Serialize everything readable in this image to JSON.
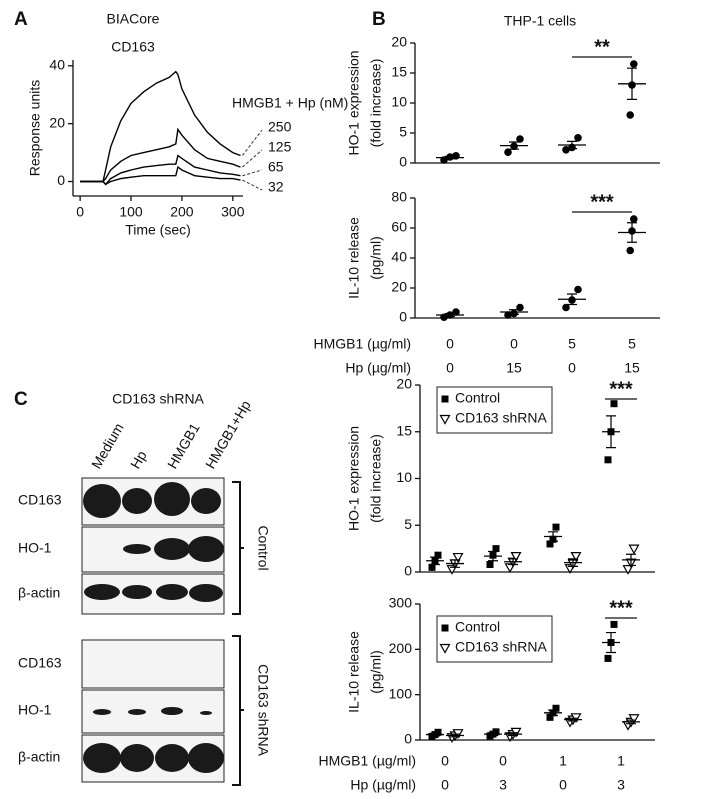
{
  "panel_labels": [
    "A",
    "B",
    "C"
  ],
  "blot": {
    "title": "CD163 shRNA",
    "lanes": [
      "Medium",
      "Hp",
      "HMGB1",
      "HMGB1+Hp"
    ],
    "groups": [
      {
        "label": "Control",
        "rows": [
          "CD163",
          "HO-1",
          "β-actin"
        ]
      },
      {
        "label": "CD163 shRNA",
        "rows": [
          "CD163",
          "HO-1",
          "β-actin"
        ]
      }
    ]
  },
  "chart_data": [
    {
      "type": "line",
      "title": "BIACore",
      "subtitle": "CD163",
      "x_label": "Time (sec)",
      "y_label": "Response units",
      "legend_title": "HMGB1 + Hp (nM)",
      "x": [
        0,
        25,
        45,
        50,
        60,
        80,
        100,
        125,
        150,
        175,
        188,
        192,
        200,
        225,
        250,
        275,
        300,
        315
      ],
      "xlim": [
        -14,
        320
      ],
      "xticks": [
        0,
        100,
        200,
        300
      ],
      "ylim": [
        -5,
        42
      ],
      "yticks": [
        0,
        20,
        40
      ],
      "series": [
        {
          "name": "250",
          "color": "#000000",
          "values": [
            0,
            0,
            0,
            4,
            12,
            21,
            27,
            31,
            34,
            36,
            38,
            37,
            32,
            23,
            17,
            13,
            10,
            9
          ]
        },
        {
          "name": "125",
          "color": "#000000",
          "values": [
            0,
            0,
            0,
            1,
            4,
            7,
            9,
            10,
            11,
            12,
            13,
            18,
            16,
            11,
            8,
            7,
            6,
            5
          ]
        },
        {
          "name": "65",
          "color": "#000000",
          "values": [
            0,
            0,
            0,
            -1,
            1,
            3,
            4,
            5,
            5.5,
            6,
            6,
            9,
            8,
            5,
            4,
            3,
            2.5,
            2
          ]
        },
        {
          "name": "32",
          "color": "#000000",
          "values": [
            0,
            0,
            0,
            -1,
            0,
            1,
            1.5,
            2,
            2,
            2,
            2,
            5,
            4,
            2,
            1.5,
            1,
            1,
            0.5
          ]
        }
      ]
    },
    {
      "type": "dotplot",
      "title": "THP-1 cells",
      "y_label": [
        "HO-1 expression",
        "(fold increase)"
      ],
      "ylim": [
        0,
        20
      ],
      "yticks": [
        0,
        5,
        10,
        15,
        20
      ],
      "series": [
        {
          "color": "#000000",
          "marker": "circle",
          "points": [
            [
              0.5,
              1,
              1.2
            ],
            [
              1.8,
              2.8,
              4
            ],
            [
              2.2,
              2.6,
              4.2
            ],
            [
              8,
              13,
              16.5
            ]
          ],
          "mean": [
            0.9,
            2.9,
            3,
            13.2
          ],
          "sem": [
            0.2,
            0.6,
            0.6,
            2.6
          ]
        }
      ],
      "significance": [
        {
          "label": "**",
          "from": 2,
          "to": 3
        }
      ]
    },
    {
      "type": "dotplot",
      "y_label": [
        "IL-10 release",
        "(pg/ml)"
      ],
      "ylim": [
        0,
        80
      ],
      "yticks": [
        0,
        20,
        40,
        60,
        80
      ],
      "series": [
        {
          "color": "#000000",
          "marker": "circle",
          "points": [
            [
              0.5,
              2,
              4
            ],
            [
              2,
              3,
              7
            ],
            [
              7,
              12,
              19
            ],
            [
              45,
              58,
              66
            ]
          ],
          "mean": [
            2,
            4,
            12.5,
            57
          ],
          "sem": [
            1,
            1.5,
            3.5,
            6.5
          ]
        }
      ],
      "significance": [
        {
          "label": "***",
          "from": 2,
          "to": 3
        }
      ],
      "conditions": [
        {
          "label": "HMGB1 (µg/ml)",
          "values": [
            0,
            0,
            5,
            5
          ]
        },
        {
          "label": "Hp (µg/ml)",
          "values": [
            0,
            15,
            0,
            15
          ]
        }
      ]
    },
    {
      "type": "dotplot",
      "y_label": [
        "HO-1 expression",
        "(fold increase)"
      ],
      "ylim": [
        0,
        20
      ],
      "yticks": [
        0,
        5,
        10,
        15,
        20
      ],
      "legend": true,
      "series": [
        {
          "name": "Control",
          "color": "#000000",
          "marker": "square",
          "points": [
            [
              0.5,
              1.2,
              1.8
            ],
            [
              0.8,
              1.8,
              2.5
            ],
            [
              3,
              3.5,
              4.8
            ],
            [
              12,
              15,
              18
            ]
          ],
          "mean": [
            1.2,
            1.7,
            3.8,
            15
          ],
          "sem": [
            0.4,
            0.5,
            0.5,
            1.7
          ]
        },
        {
          "name": "CD163 shRNA",
          "color": "#000000",
          "marker": "triangle-down-open",
          "points": [
            [
              0.3,
              0.9,
              1.6
            ],
            [
              0.5,
              1.1,
              1.7
            ],
            [
              0.4,
              0.9,
              1.7
            ],
            [
              0.3,
              1,
              2.5
            ]
          ],
          "mean": [
            0.9,
            1.1,
            1,
            1.3
          ],
          "sem": [
            0.4,
            0.3,
            0.4,
            0.6
          ]
        }
      ],
      "significance": [
        {
          "label": "***",
          "from": 3,
          "to": 3
        }
      ]
    },
    {
      "type": "dotplot",
      "y_label": [
        "IL-10 release",
        "(pg/ml)"
      ],
      "ylim": [
        0,
        300
      ],
      "yticks": [
        0,
        100,
        200,
        300
      ],
      "legend": true,
      "series": [
        {
          "name": "Control",
          "color": "#000000",
          "marker": "square",
          "points": [
            [
              8,
              12,
              17
            ],
            [
              9,
              13,
              18
            ],
            [
              50,
              60,
              70
            ],
            [
              180,
              215,
              255
            ]
          ],
          "mean": [
            12,
            13,
            60,
            215
          ],
          "sem": [
            3,
            3,
            6,
            22
          ]
        },
        {
          "name": "CD163 shRNA",
          "color": "#000000",
          "marker": "triangle-down-open",
          "points": [
            [
              6,
              10,
              15
            ],
            [
              8,
              13,
              18
            ],
            [
              40,
              45,
              50
            ],
            [
              33,
              40,
              48
            ]
          ],
          "mean": [
            10,
            13,
            45,
            40
          ],
          "sem": [
            3,
            3,
            3,
            4
          ]
        }
      ],
      "significance": [
        {
          "label": "***",
          "from": 3,
          "to": 3
        }
      ],
      "conditions": [
        {
          "label": "HMGB1 (µg/ml)",
          "values": [
            0,
            0,
            1,
            1
          ]
        },
        {
          "label": "Hp (µg/ml)",
          "values": [
            0,
            3,
            0,
            3
          ]
        }
      ]
    }
  ]
}
